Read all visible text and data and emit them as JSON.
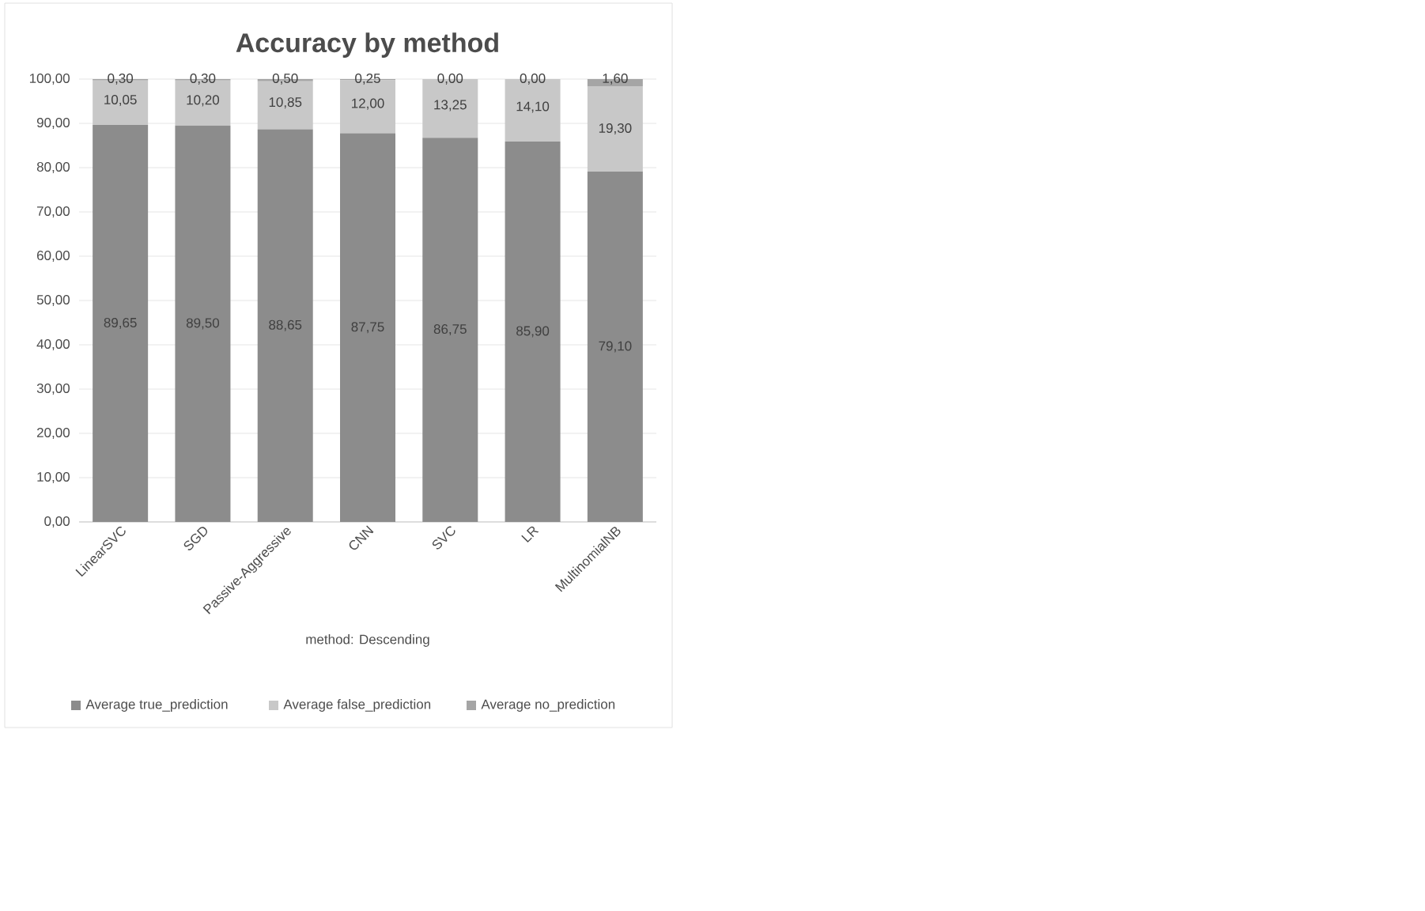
{
  "chart_data": {
    "type": "bar",
    "stacked": true,
    "title": "Accuracy by method",
    "xlabel": "method: Descending",
    "categories": [
      "LinearSVC",
      "SGD",
      "Passive-Aggressive",
      "CNN",
      "SVC",
      "LR",
      "MultinomialNB"
    ],
    "series": [
      {
        "name": "Average true_prediction",
        "color": "#8c8c8c",
        "values": [
          89.65,
          89.5,
          88.65,
          87.75,
          86.75,
          85.9,
          79.1
        ],
        "value_labels": [
          "89,65",
          "89,50",
          "88,65",
          "87,75",
          "86,75",
          "85,90",
          "79,10"
        ]
      },
      {
        "name": "Average false_prediction",
        "color": "#c8c8c8",
        "values": [
          10.05,
          10.2,
          10.85,
          12.0,
          13.25,
          14.1,
          19.3
        ],
        "value_labels": [
          "10,05",
          "10,20",
          "10,85",
          "12,00",
          "13,25",
          "14,10",
          "19,30"
        ]
      },
      {
        "name": "Average no_prediction",
        "color": "#a5a5a5",
        "values": [
          0.3,
          0.3,
          0.5,
          0.25,
          0.0,
          0.0,
          1.6
        ],
        "value_labels": [
          "0,30",
          "0,30",
          "0,50",
          "0,25",
          "0,00",
          "0,00",
          "1,60"
        ]
      }
    ],
    "ylim": [
      0,
      100
    ],
    "yticks": [
      {
        "value": 0,
        "label": "0,00"
      },
      {
        "value": 10,
        "label": "10,00"
      },
      {
        "value": 20,
        "label": "20,00"
      },
      {
        "value": 30,
        "label": "30,00"
      },
      {
        "value": 40,
        "label": "40,00"
      },
      {
        "value": 50,
        "label": "50,00"
      },
      {
        "value": 60,
        "label": "60,00"
      },
      {
        "value": 70,
        "label": "70,00"
      },
      {
        "value": 80,
        "label": "80,00"
      },
      {
        "value": 90,
        "label": "90,00"
      },
      {
        "value": 100,
        "label": "100,00"
      }
    ],
    "grid": "y",
    "legend": "bottom"
  }
}
